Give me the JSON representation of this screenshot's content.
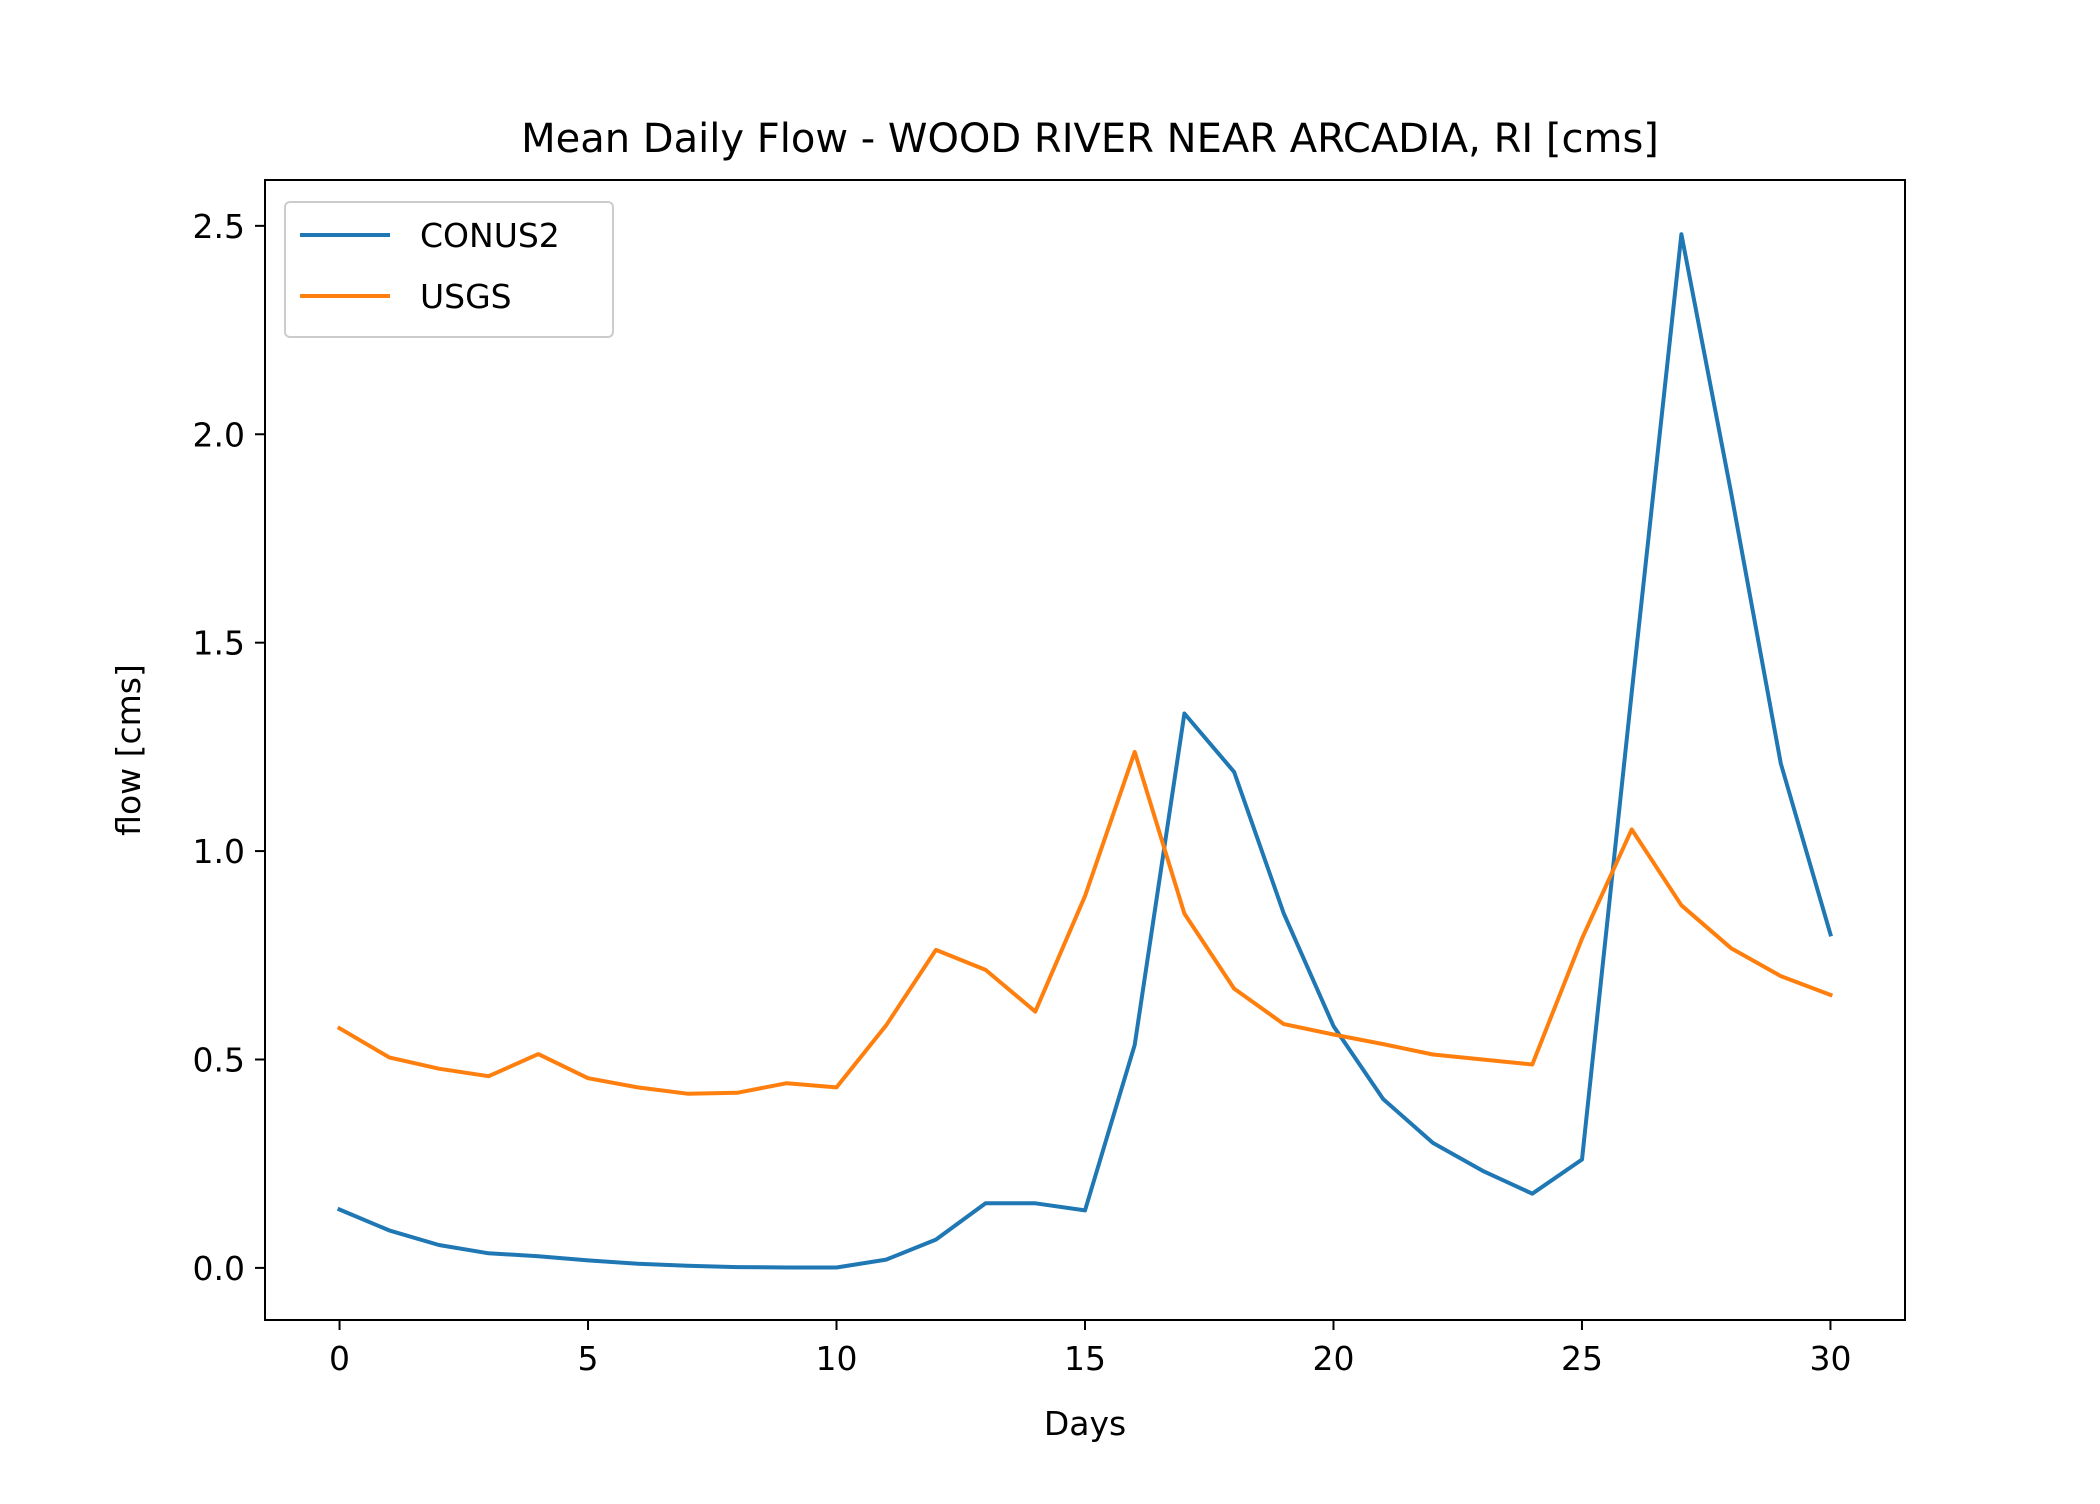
{
  "chart_data": {
    "type": "line",
    "title": "Mean Daily Flow - WOOD RIVER NEAR ARCADIA, RI [cms]",
    "xlabel": "Days",
    "ylabel": "flow [cms]",
    "xlim": [
      -1.5,
      31.5
    ],
    "ylim": [
      -0.125,
      2.61
    ],
    "xticks": [
      0,
      5,
      10,
      15,
      20,
      25,
      30
    ],
    "xtick_labels": [
      "0",
      "5",
      "10",
      "15",
      "20",
      "25",
      "30"
    ],
    "yticks": [
      0.0,
      0.5,
      1.0,
      1.5,
      2.0,
      2.5
    ],
    "ytick_labels": [
      "0.0",
      "0.5",
      "1.0",
      "1.5",
      "2.0",
      "2.5"
    ],
    "grid": false,
    "legend_position": "upper-left",
    "x": [
      0,
      1,
      2,
      3,
      4,
      5,
      6,
      7,
      8,
      9,
      10,
      11,
      12,
      13,
      14,
      15,
      16,
      17,
      18,
      19,
      20,
      21,
      22,
      23,
      24,
      25,
      26,
      27,
      28,
      29,
      30
    ],
    "series": [
      {
        "name": "CONUS2",
        "color": "#1f77b4",
        "values": [
          0.14,
          0.09,
          0.055,
          0.035,
          0.028,
          0.018,
          0.01,
          0.005,
          0.002,
          0.001,
          0.001,
          0.02,
          0.068,
          0.155,
          0.155,
          0.138,
          0.535,
          1.33,
          1.19,
          0.85,
          0.58,
          0.405,
          0.3,
          0.233,
          0.178,
          0.26,
          1.38,
          2.48,
          1.86,
          1.21,
          0.8
        ]
      },
      {
        "name": "USGS",
        "color": "#ff7f0e",
        "values": [
          0.575,
          0.505,
          0.478,
          0.46,
          0.513,
          0.455,
          0.433,
          0.418,
          0.42,
          0.443,
          0.433,
          0.582,
          0.763,
          0.715,
          0.615,
          0.892,
          1.238,
          0.85,
          0.67,
          0.585,
          0.56,
          0.537,
          0.512,
          0.5,
          0.488,
          0.79,
          1.052,
          0.87,
          0.767,
          0.7,
          0.655
        ]
      }
    ]
  }
}
